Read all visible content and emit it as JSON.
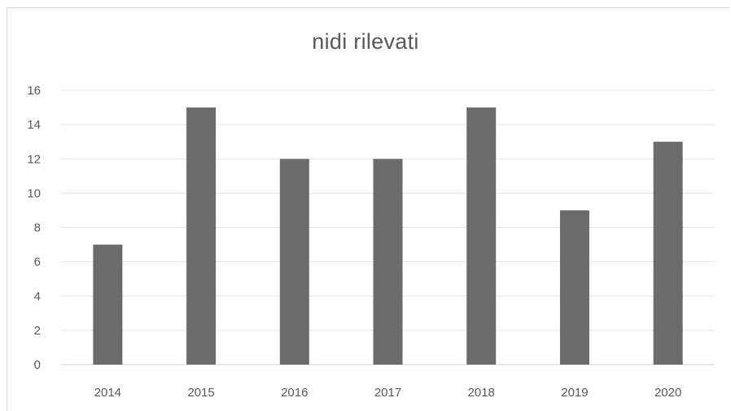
{
  "chart_data": {
    "type": "bar",
    "title": "nidi rilevati",
    "categories": [
      "2014",
      "2015",
      "2016",
      "2017",
      "2018",
      "2019",
      "2020"
    ],
    "values": [
      7,
      15,
      12,
      12,
      15,
      9,
      13
    ],
    "xlabel": "",
    "ylabel": "",
    "ylim": [
      0,
      16
    ],
    "yticks": [
      "0",
      "2",
      "4",
      "6",
      "8",
      "10",
      "12",
      "14",
      "16"
    ],
    "grid": true,
    "legend": "none",
    "colors": {
      "bar": "#6b6b6b",
      "grid": "#e4e4e4",
      "text": "#595959"
    }
  }
}
